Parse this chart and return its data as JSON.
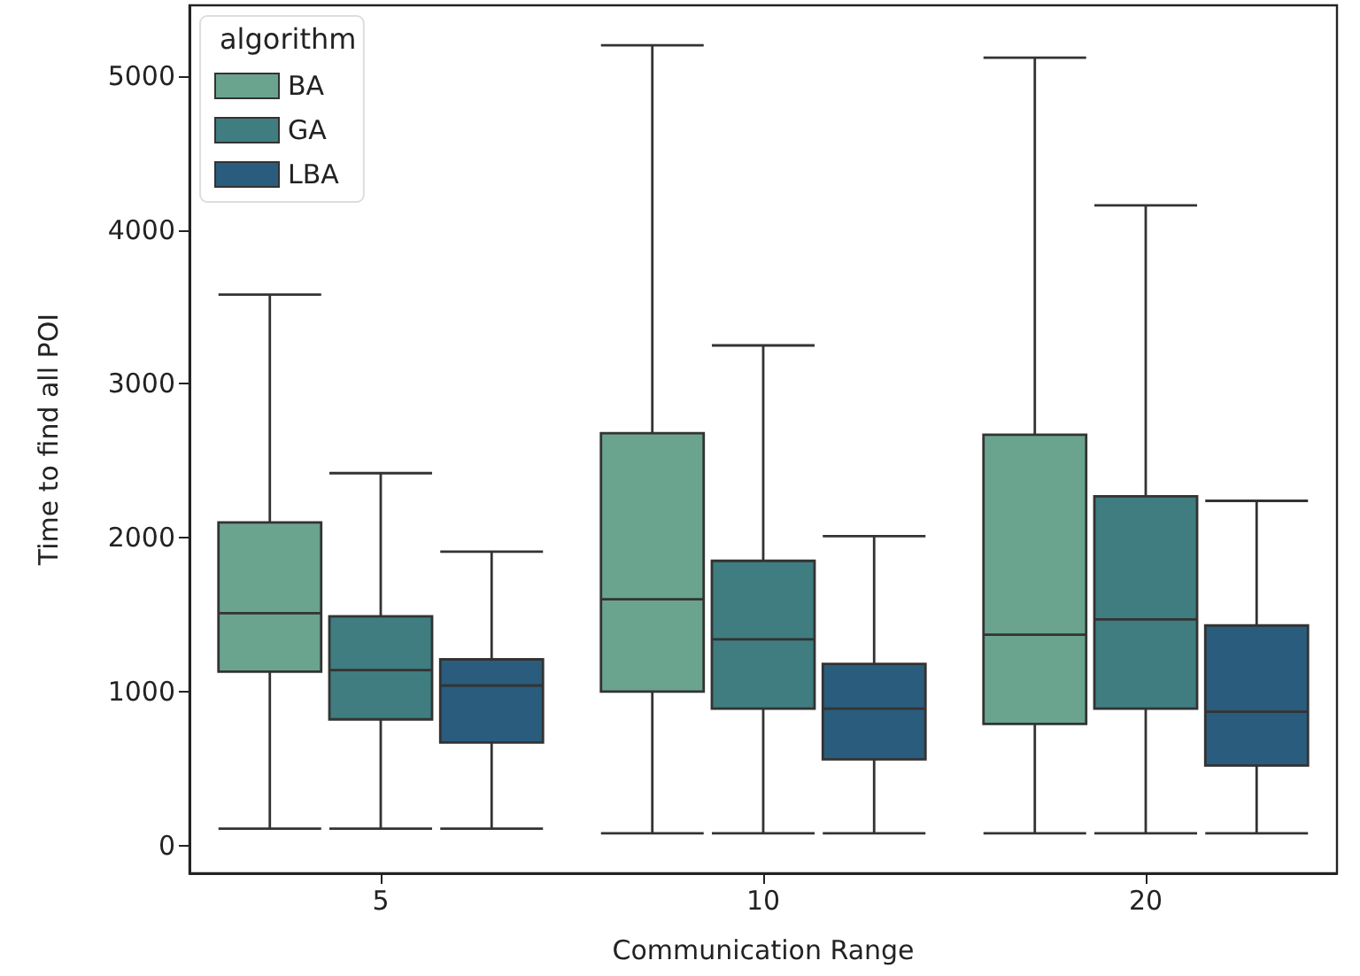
{
  "chart_data": {
    "type": "box",
    "xlabel": "Communication Range",
    "ylabel": "Time to find all POI",
    "legend_title": "algorithm",
    "legend": "top left",
    "categories": [
      "5",
      "10",
      "20"
    ],
    "ylim": [
      -180,
      5460
    ],
    "yticks": [
      0,
      1000,
      2000,
      3000,
      4000,
      5000
    ],
    "series": [
      {
        "name": "BA",
        "color": "#6aa48f",
        "boxes": [
          {
            "low": 110,
            "q1": 1130,
            "median": 1510,
            "q3": 2100,
            "high": 3580
          },
          {
            "low": 80,
            "q1": 1000,
            "median": 1600,
            "q3": 2680,
            "high": 5200
          },
          {
            "low": 80,
            "q1": 790,
            "median": 1370,
            "q3": 2670,
            "high": 5120
          }
        ]
      },
      {
        "name": "GA",
        "color": "#3f7d80",
        "boxes": [
          {
            "low": 110,
            "q1": 820,
            "median": 1140,
            "q3": 1490,
            "high": 2420
          },
          {
            "low": 80,
            "q1": 890,
            "median": 1340,
            "q3": 1850,
            "high": 3250
          },
          {
            "low": 80,
            "q1": 890,
            "median": 1470,
            "q3": 2270,
            "high": 4160
          }
        ]
      },
      {
        "name": "LBA",
        "color": "#2a5c7d",
        "boxes": [
          {
            "low": 110,
            "q1": 670,
            "median": 1040,
            "q3": 1210,
            "high": 1910
          },
          {
            "low": 80,
            "q1": 560,
            "median": 890,
            "q3": 1180,
            "high": 2010
          },
          {
            "low": 80,
            "q1": 520,
            "median": 870,
            "q3": 1430,
            "high": 2240
          }
        ]
      }
    ]
  }
}
